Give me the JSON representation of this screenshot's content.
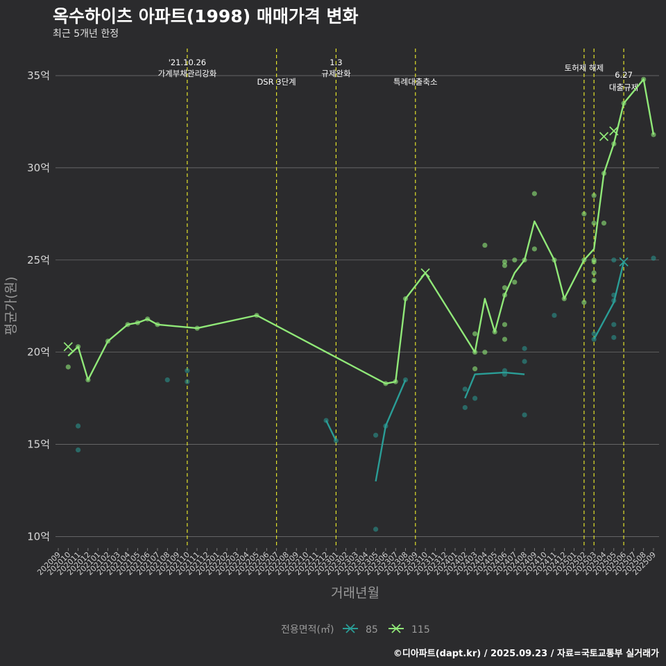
{
  "title": "옥수하이츠 아파트(1998) 매매가격 변화",
  "subtitle": "최근 5개년 한정",
  "caption": "©디아파트(dapt.kr) / 2025.09.23 / 자료=국토교통부 실거래가",
  "chart_data": {
    "type": "line",
    "xlabel": "거래년월",
    "ylabel": "평균가(원)",
    "categories": [
      "202009",
      "202010",
      "202011",
      "202012",
      "202101",
      "202102",
      "202103",
      "202104",
      "202105",
      "202106",
      "202107",
      "202108",
      "202109",
      "202110",
      "202111",
      "202112",
      "202201",
      "202202",
      "202203",
      "202204",
      "202205",
      "202206",
      "202207",
      "202208",
      "202209",
      "202210",
      "202211",
      "202212",
      "202301",
      "202302",
      "202303",
      "202304",
      "202305",
      "202306",
      "202307",
      "202308",
      "202309",
      "202310",
      "202311",
      "202312",
      "202401",
      "202402",
      "202403",
      "202404",
      "202405",
      "202406",
      "202407",
      "202408",
      "202409",
      "202410",
      "202411",
      "202412",
      "202501",
      "202502",
      "202503",
      "202504",
      "202505",
      "202506",
      "202507",
      "202508",
      "202509"
    ],
    "yticks": [
      {
        "value": 10,
        "label": "10억"
      },
      {
        "value": 15,
        "label": "15억"
      },
      {
        "value": 20,
        "label": "20억"
      },
      {
        "value": 25,
        "label": "25억"
      },
      {
        "value": 30,
        "label": "30억"
      },
      {
        "value": 35,
        "label": "35억"
      }
    ],
    "ylim": [
      9.3,
      36.4
    ],
    "grid": true,
    "legend": {
      "title": "전용면적(㎡)",
      "position": "bottom"
    },
    "colors": {
      "s85": "#2a9d96",
      "s115": "#90e878",
      "vline": "#e3e32a",
      "background": "#2b2b2d"
    },
    "annotations": [
      {
        "x": "202110",
        "lines": [
          "'21.10.26",
          "가계부채관리강화"
        ]
      },
      {
        "x": "202207",
        "lines": [
          "DSR 3단계"
        ]
      },
      {
        "x": "202301",
        "lines": [
          "1.3",
          "규제완화"
        ]
      },
      {
        "x": "202309",
        "lines": [
          "특례대출축소"
        ]
      },
      {
        "x": "202502",
        "lines": [
          "토허제 해제"
        ]
      },
      {
        "x": "202503",
        "lines": [
          ""
        ]
      },
      {
        "x": "202506",
        "lines": [
          "6.27",
          "대출규제"
        ]
      }
    ],
    "series": [
      {
        "name": "85",
        "line_segments": [
          [
            [
              "202212",
              16.3
            ],
            [
              "202301",
              15.2
            ]
          ],
          [
            [
              "202305",
              13.0
            ],
            [
              "202306",
              16.0
            ],
            [
              "202308",
              18.5
            ]
          ],
          [
            [
              "202402",
              17.5
            ],
            [
              "202403",
              18.8
            ],
            [
              "202406",
              18.9
            ],
            [
              "202408",
              18.8
            ]
          ],
          [
            [
              "202503",
              20.7
            ],
            [
              "202505",
              22.7
            ],
            [
              "202506",
              24.9
            ]
          ]
        ],
        "points": [
          [
            "202011",
            16.0
          ],
          [
            "202011",
            14.7
          ],
          [
            "202108",
            18.5
          ],
          [
            "202110",
            19.0
          ],
          [
            "202110",
            18.4
          ],
          [
            "202212",
            16.3
          ],
          [
            "202301",
            15.2
          ],
          [
            "202305",
            15.5
          ],
          [
            "202305",
            10.4
          ],
          [
            "202306",
            16.0
          ],
          [
            "202308",
            18.5
          ],
          [
            "202402",
            18.0
          ],
          [
            "202402",
            17.0
          ],
          [
            "202403",
            17.5
          ],
          [
            "202406",
            19.0
          ],
          [
            "202406",
            18.8
          ],
          [
            "202408",
            20.2
          ],
          [
            "202408",
            19.5
          ],
          [
            "202408",
            16.6
          ],
          [
            "202411",
            22.0
          ],
          [
            "202503",
            21.0
          ],
          [
            "202503",
            20.7
          ],
          [
            "202505",
            25.0
          ],
          [
            "202505",
            23.1
          ],
          [
            "202505",
            22.8
          ],
          [
            "202505",
            21.5
          ],
          [
            "202505",
            20.8
          ],
          [
            "202509",
            25.1
          ]
        ],
        "crosses": [
          [
            "202506",
            24.9
          ]
        ]
      },
      {
        "name": "115",
        "line_segments": [
          [
            [
              "202010",
              19.8
            ],
            [
              "202011",
              20.3
            ],
            [
              "202012",
              18.5
            ],
            [
              "202102",
              20.6
            ],
            [
              "202104",
              21.5
            ],
            [
              "202105",
              21.6
            ],
            [
              "202106",
              21.8
            ],
            [
              "202107",
              21.5
            ],
            [
              "202111",
              21.3
            ],
            [
              "202205",
              22.0
            ],
            [
              "202306",
              18.3
            ],
            [
              "202307",
              18.4
            ],
            [
              "202308",
              22.9
            ],
            [
              "202310",
              24.3
            ],
            [
              "202403",
              20.0
            ],
            [
              "202404",
              22.9
            ],
            [
              "202405",
              21.1
            ],
            [
              "202406",
              23.1
            ],
            [
              "202407",
              24.3
            ],
            [
              "202408",
              25.0
            ],
            [
              "202409",
              27.1
            ],
            [
              "202411",
              25.0
            ],
            [
              "202412",
              22.9
            ],
            [
              "202502",
              25.0
            ],
            [
              "202503",
              25.6
            ],
            [
              "202504",
              29.7
            ],
            [
              "202505",
              31.3
            ],
            [
              "202506",
              33.5
            ],
            [
              "202508",
              34.8
            ],
            [
              "202509",
              31.8
            ]
          ]
        ],
        "points": [
          [
            "202010",
            19.2
          ],
          [
            "202011",
            20.3
          ],
          [
            "202012",
            18.5
          ],
          [
            "202102",
            20.6
          ],
          [
            "202104",
            21.5
          ],
          [
            "202105",
            21.6
          ],
          [
            "202106",
            21.8
          ],
          [
            "202107",
            21.5
          ],
          [
            "202111",
            21.3
          ],
          [
            "202205",
            22.0
          ],
          [
            "202306",
            18.3
          ],
          [
            "202307",
            18.4
          ],
          [
            "202308",
            22.9
          ],
          [
            "202403",
            21.0
          ],
          [
            "202403",
            19.1
          ],
          [
            "202403",
            20.0
          ],
          [
            "202404",
            25.8
          ],
          [
            "202404",
            20.0
          ],
          [
            "202405",
            21.1
          ],
          [
            "202406",
            24.9
          ],
          [
            "202406",
            24.7
          ],
          [
            "202406",
            23.5
          ],
          [
            "202406",
            23.1
          ],
          [
            "202406",
            21.5
          ],
          [
            "202406",
            20.7
          ],
          [
            "202407",
            25.0
          ],
          [
            "202407",
            23.8
          ],
          [
            "202408",
            25.0
          ],
          [
            "202409",
            28.6
          ],
          [
            "202409",
            25.6
          ],
          [
            "202411",
            25.0
          ],
          [
            "202412",
            22.9
          ],
          [
            "202502",
            27.5
          ],
          [
            "202502",
            25.0
          ],
          [
            "202502",
            22.7
          ],
          [
            "202503",
            28.5
          ],
          [
            "202503",
            27.0
          ],
          [
            "202503",
            25.0
          ],
          [
            "202503",
            24.9
          ],
          [
            "202503",
            24.3
          ],
          [
            "202503",
            23.9
          ],
          [
            "202504",
            29.7
          ],
          [
            "202504",
            27.0
          ],
          [
            "202505",
            31.3
          ],
          [
            "202506",
            33.5
          ],
          [
            "202508",
            34.8
          ],
          [
            "202509",
            31.8
          ]
        ],
        "crosses": [
          [
            "202010",
            20.3
          ],
          [
            "202310",
            24.3
          ],
          [
            "202504",
            31.7
          ],
          [
            "202505",
            32.0
          ]
        ]
      }
    ]
  }
}
